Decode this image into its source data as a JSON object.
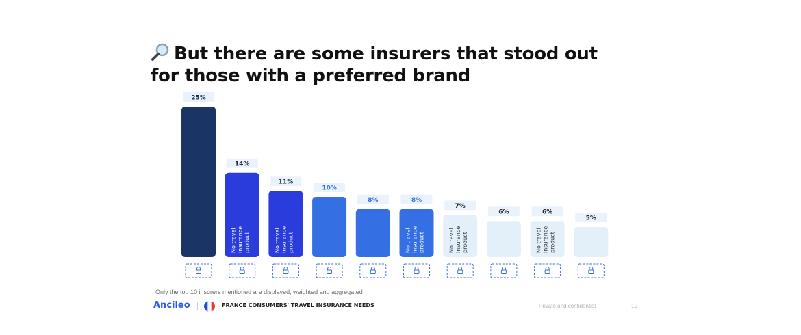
{
  "slide": {
    "title": "But there are some insurers that stood out for those with a preferred brand",
    "title_icon": "magnifying-glass-icon",
    "footnote": "Only the top 10 insurers mentioned are displayed, weighted and aggregated",
    "brand": "Ancileo",
    "flag_icon": "france-flag-icon",
    "report_title": "FRANCE CONSUMERS' TRAVEL INSURANCE NEEDS",
    "confidential": "Private and confidential",
    "page_number": "10"
  },
  "chart_data": {
    "type": "bar",
    "categories": [
      "",
      "",
      "",
      "",
      "",
      "",
      "",
      "",
      "",
      ""
    ],
    "values": [
      25,
      14,
      11,
      10,
      8,
      8,
      7,
      6,
      6,
      5
    ],
    "value_labels": [
      "25%",
      "14%",
      "11%",
      "10%",
      "8%",
      "8%",
      "7%",
      "6%",
      "6%",
      "5%"
    ],
    "bar_notes": [
      "",
      "No travel insurance product",
      "No travel insurance product",
      "",
      "",
      "No travel insurance product",
      "No travel insurance product",
      "",
      "No travel insurance product",
      ""
    ],
    "category_icon": "lock-icon",
    "colors": [
      "#1b3466",
      "#2a3ddc",
      "#2a3ddc",
      "#3470e4",
      "#3470e4",
      "#3470e4",
      "#e4f0f9",
      "#e4f0f9",
      "#e4f0f9",
      "#e4f0f9"
    ],
    "label_bg": "#eaf3fc",
    "label_colors": [
      "#1b2a4a",
      "#1b2a4a",
      "#1b2a4a",
      "#3470e4",
      "#3470e4",
      "#3470e4",
      "#222222",
      "#222222",
      "#222222",
      "#222222"
    ],
    "ylim": [
      0,
      25
    ]
  }
}
